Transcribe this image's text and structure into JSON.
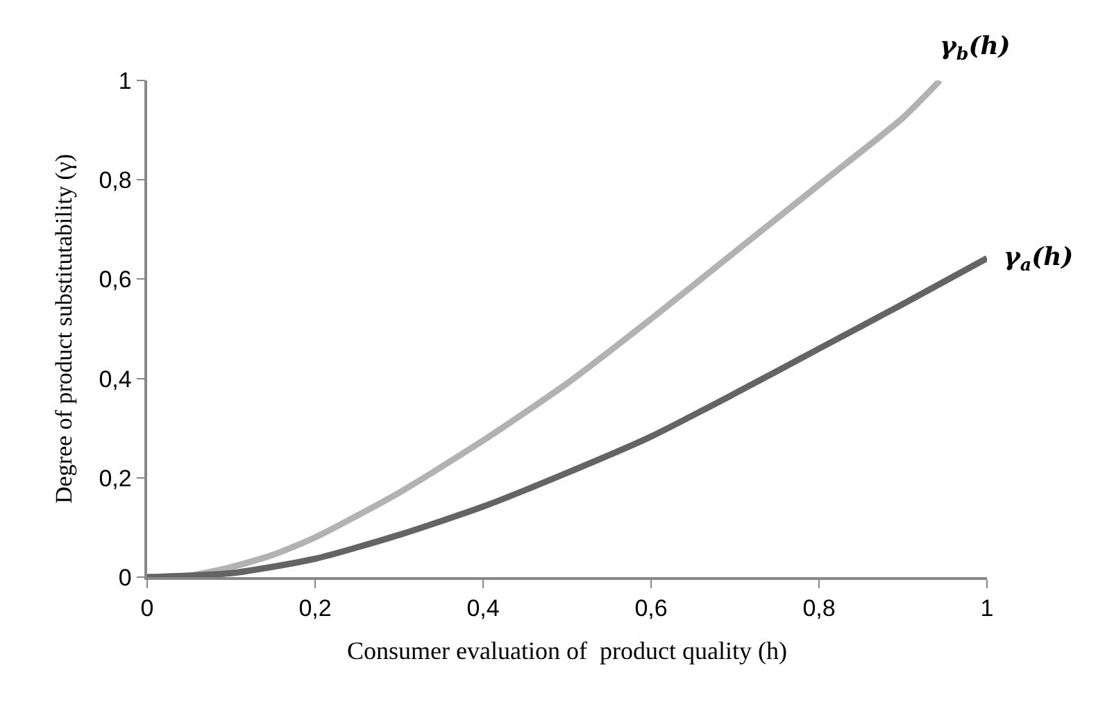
{
  "chart_data": {
    "type": "line",
    "xlabel": "Consumer evaluation of  product quality (h)",
    "ylabel": "Degree of product substitutability (γ)",
    "xlim": [
      0,
      1
    ],
    "ylim": [
      0,
      1
    ],
    "xticks": [
      0,
      {
        "value": 0.2,
        "label": "0,2"
      },
      {
        "value": 0.4,
        "label": "0,4"
      },
      {
        "value": 0.6,
        "label": "0,6"
      },
      {
        "value": 0.8,
        "label": "0,8"
      },
      1
    ],
    "yticks": [
      0,
      {
        "value": 0.2,
        "label": "0,2"
      },
      {
        "value": 0.4,
        "label": "0,4"
      },
      {
        "value": 0.6,
        "label": "0,6"
      },
      {
        "value": 0.8,
        "label": "0,8"
      },
      1
    ],
    "legend": false,
    "marker": "none",
    "line_style": "solid",
    "series": [
      {
        "name": "γ$_{b}$(h)",
        "color": "#b2b2b2",
        "x": [
          0,
          0.05,
          0.1,
          0.15,
          0.2,
          0.3,
          0.4,
          0.5,
          0.6,
          0.7,
          0.8,
          0.9,
          0.944
        ],
        "values": [
          0,
          0.003,
          0.02,
          0.045,
          0.08,
          0.17,
          0.275,
          0.39,
          0.52,
          0.655,
          0.79,
          0.925,
          1.0
        ]
      },
      {
        "name": "γ$_{a}$(h)",
        "color": "#646464",
        "x": [
          0,
          0.1,
          0.2,
          0.3,
          0.4,
          0.5,
          0.6,
          0.7,
          0.8,
          0.9,
          1
        ],
        "values": [
          0,
          0.008,
          0.037,
          0.085,
          0.142,
          0.21,
          0.283,
          0.37,
          0.46,
          0.55,
          0.642
        ]
      }
    ]
  }
}
